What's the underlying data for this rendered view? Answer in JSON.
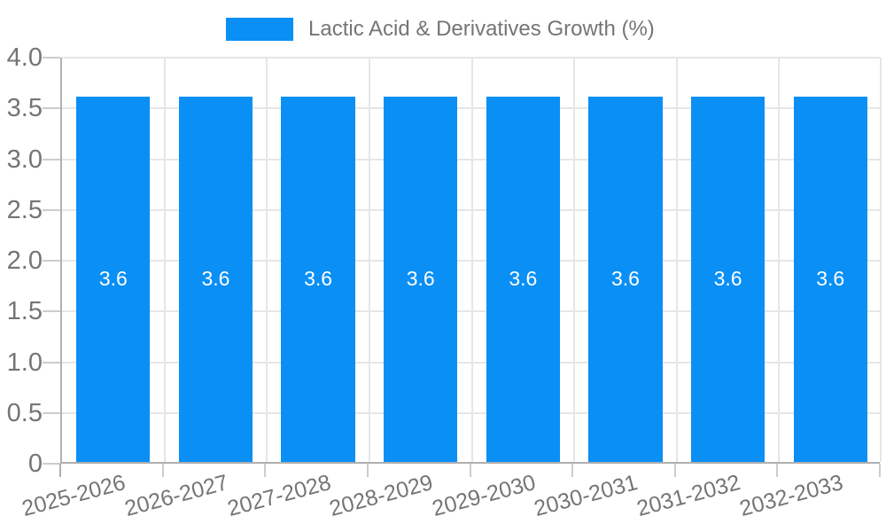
{
  "chart_data": {
    "type": "bar",
    "title": "Lactic Acid & Derivatives Growth (%)",
    "categories": [
      "2025-2026",
      "2026-2027",
      "2027-2028",
      "2028-2029",
      "2029-2030",
      "2030-2031",
      "2031-2032",
      "2032-2033"
    ],
    "series": [
      {
        "name": "Lactic Acid & Derivatives Growth (%)",
        "values": [
          3.6,
          3.6,
          3.6,
          3.6,
          3.6,
          3.6,
          3.6,
          3.6
        ]
      }
    ],
    "bar_labels": [
      "3.6",
      "3.6",
      "3.6",
      "3.6",
      "3.6",
      "3.6",
      "3.6",
      "3.6"
    ],
    "xlabel": "",
    "ylabel": "",
    "ylim": [
      0,
      4
    ],
    "ytick_labels": [
      "0",
      "0.5",
      "1.0",
      "1.5",
      "2.0",
      "2.5",
      "3.0",
      "3.5",
      "4.0"
    ],
    "ytick_values": [
      0,
      0.5,
      1.0,
      1.5,
      2.0,
      2.5,
      3.0,
      3.5,
      4.0
    ],
    "grid": "horizontal lines at every 0.5 plus vertical lines at category boundaries",
    "legend_position": "top-center",
    "x_label_rotation_deg": -15,
    "colors": {
      "bar": "#0a8ff5",
      "grid_line": "#e6e6e6",
      "axis_line": "#b0b0b0",
      "tick_line": "#cccccc",
      "label_text": "#757575",
      "bar_label_text": "#ffffff",
      "background": "#ffffff"
    }
  }
}
